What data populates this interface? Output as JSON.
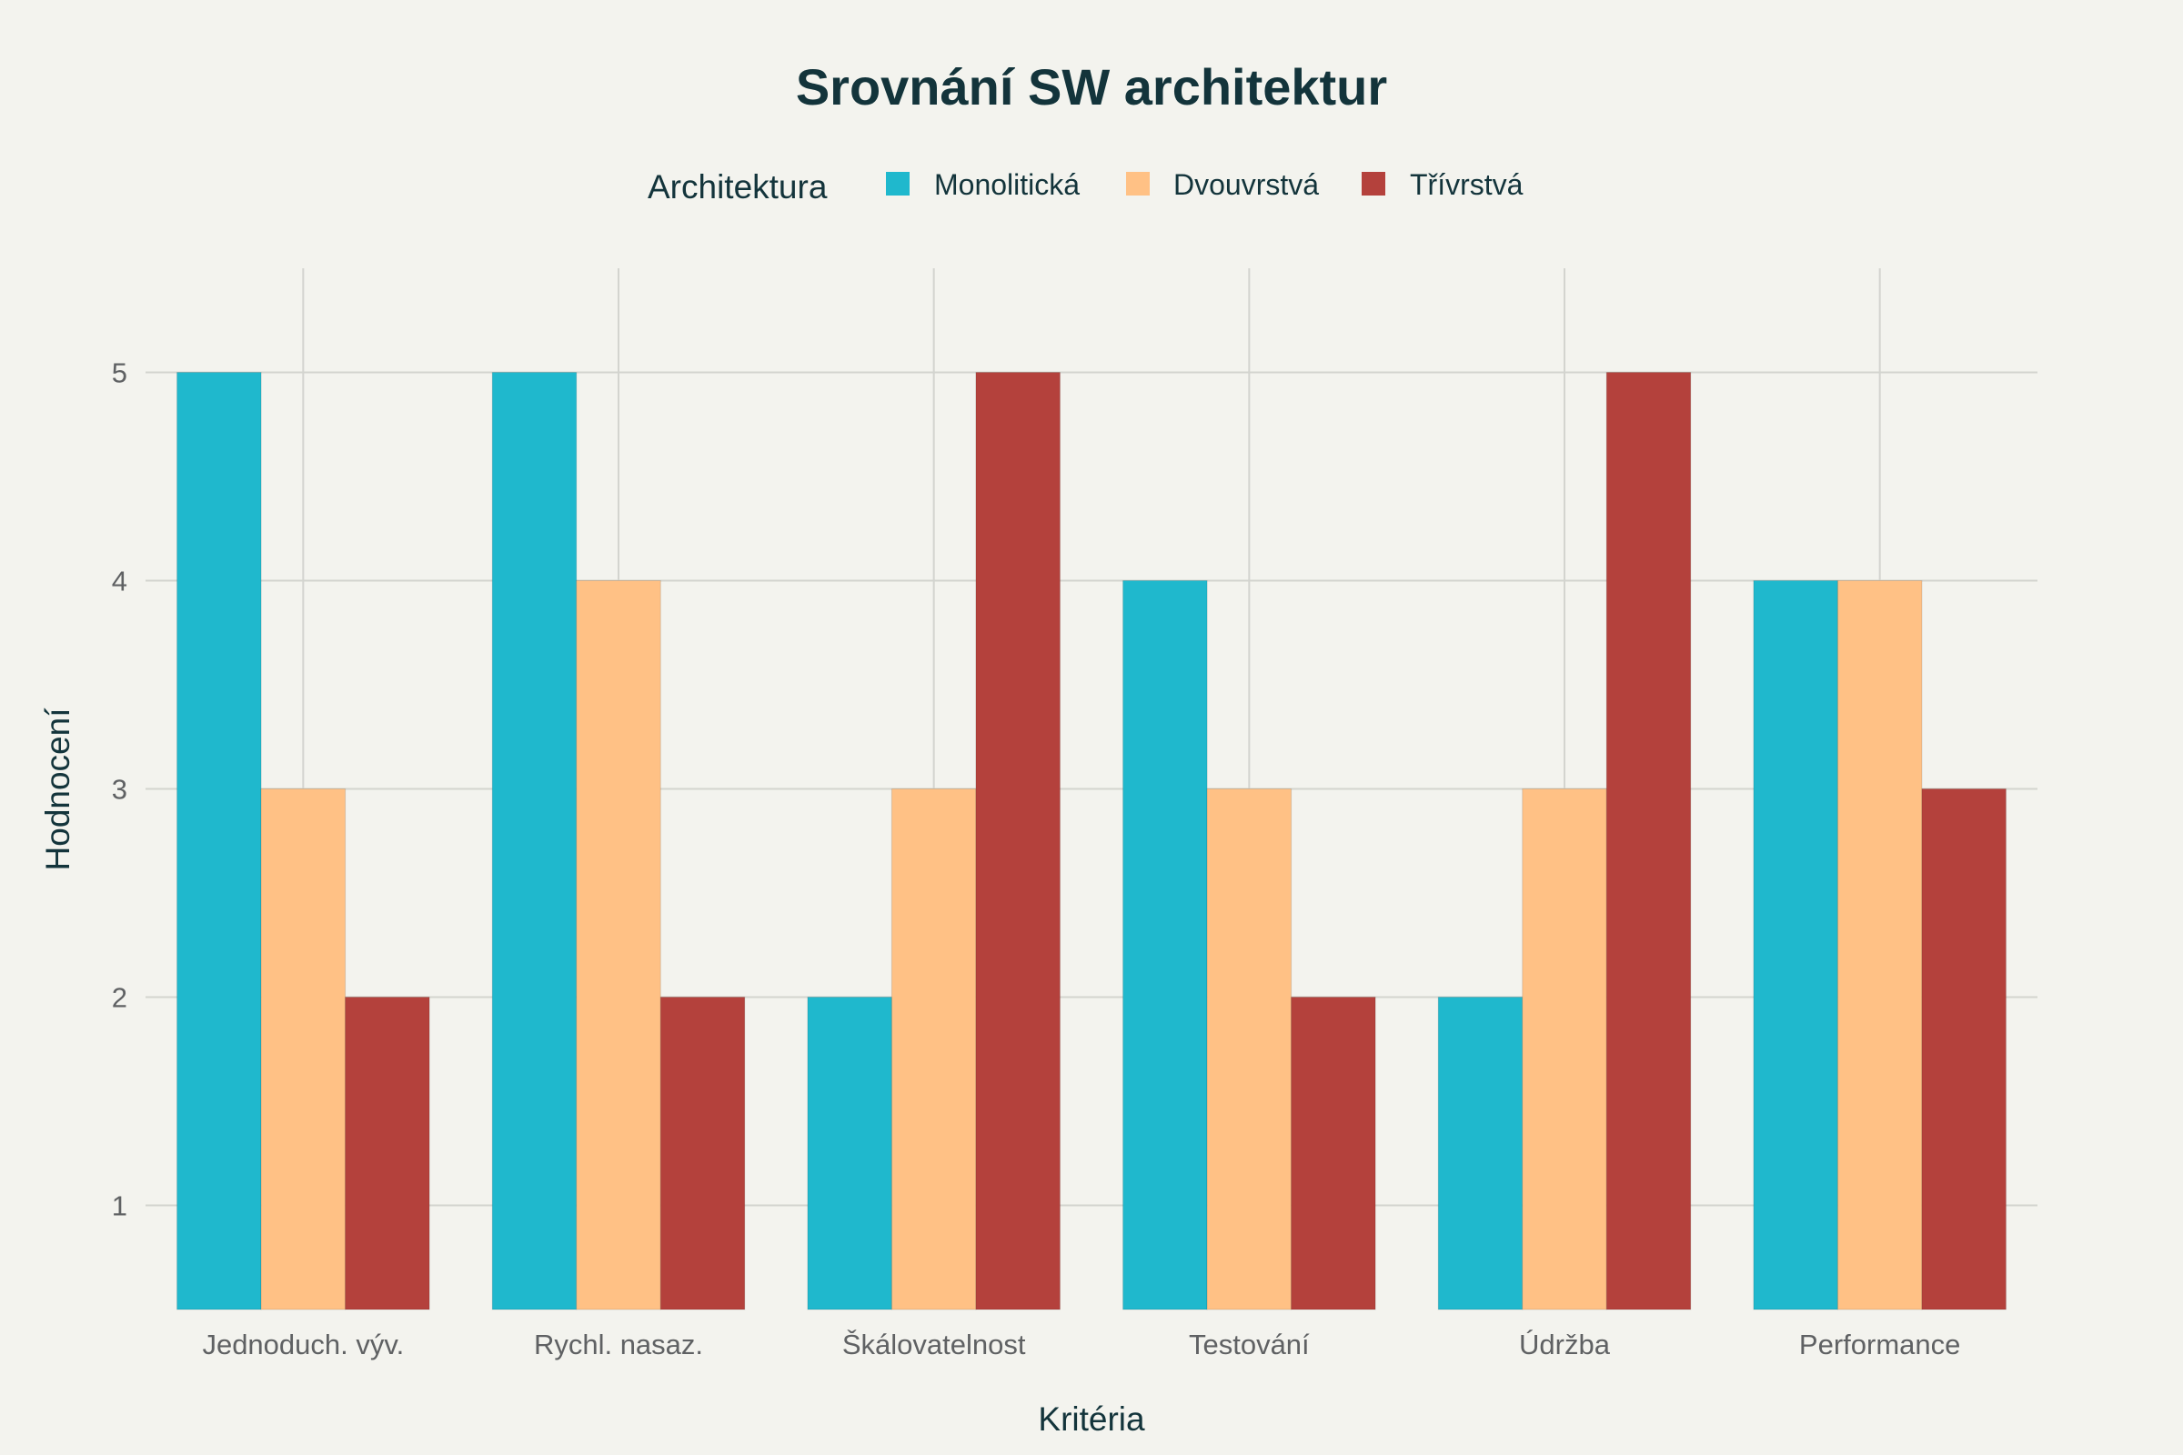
{
  "chart_data": {
    "type": "bar",
    "title": "Srovnání SW architektur",
    "xlabel": "Kritéria",
    "ylabel": "Hodnocení",
    "ylim": [
      0.5,
      5.5
    ],
    "yticks": [
      1,
      2,
      3,
      4,
      5
    ],
    "grid": true,
    "legend": {
      "title": "Architektura",
      "placement": "top-center"
    },
    "categories": [
      "Jednoduch. výv.",
      "Rychl. nasaz.",
      "Škálovatelnost",
      "Testování",
      "Údržba",
      "Performance"
    ],
    "series": [
      {
        "name": "Monolitická",
        "color": "#1fb8cd",
        "values": [
          5,
          5,
          2,
          4,
          2,
          4
        ]
      },
      {
        "name": "Dvouvrstvá",
        "color": "#ffc185",
        "values": [
          3,
          4,
          3,
          3,
          3,
          4
        ]
      },
      {
        "name": "Třívrstvá",
        "color": "#b4413c",
        "values": [
          2,
          2,
          5,
          2,
          5,
          3
        ]
      }
    ]
  }
}
